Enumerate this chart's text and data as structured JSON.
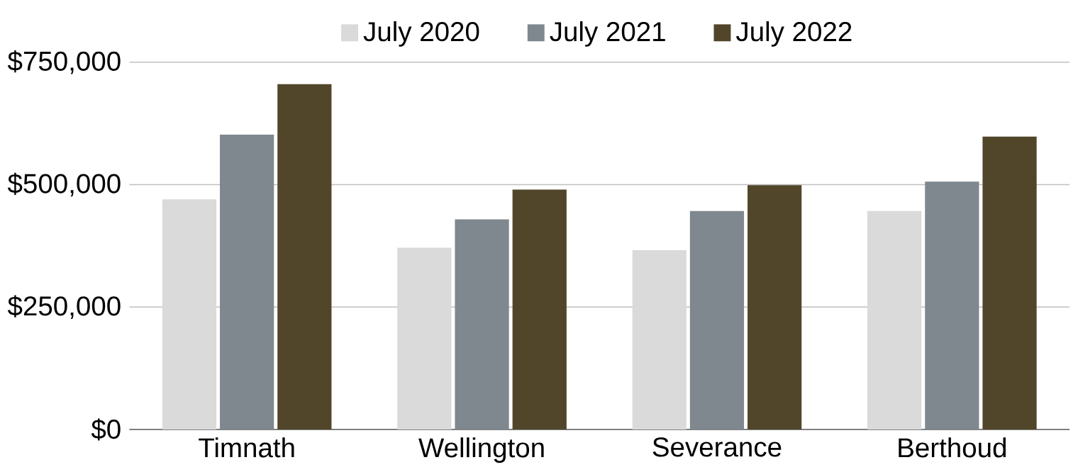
{
  "chart_data": {
    "type": "bar",
    "categories": [
      "Timnath",
      "Wellington",
      "Severance",
      "Berthoud"
    ],
    "series": [
      {
        "name": "July 2020",
        "color": "#dadada",
        "values": [
          470000,
          371000,
          366000,
          446000
        ]
      },
      {
        "name": "July 2021",
        "color": "#7f888e",
        "values": [
          602000,
          429000,
          446000,
          506000
        ]
      },
      {
        "name": "July 2022",
        "color": "#51462a",
        "values": [
          705000,
          490000,
          499000,
          598000
        ]
      }
    ],
    "ylim": [
      0,
      750000
    ],
    "yticks": [
      {
        "value": 0,
        "label": "$0"
      },
      {
        "value": 250000,
        "label": "$250,000"
      },
      {
        "value": 500000,
        "label": "$500,000"
      },
      {
        "value": 750000,
        "label": "$750,000"
      }
    ],
    "grid": "y",
    "legend": "top"
  }
}
